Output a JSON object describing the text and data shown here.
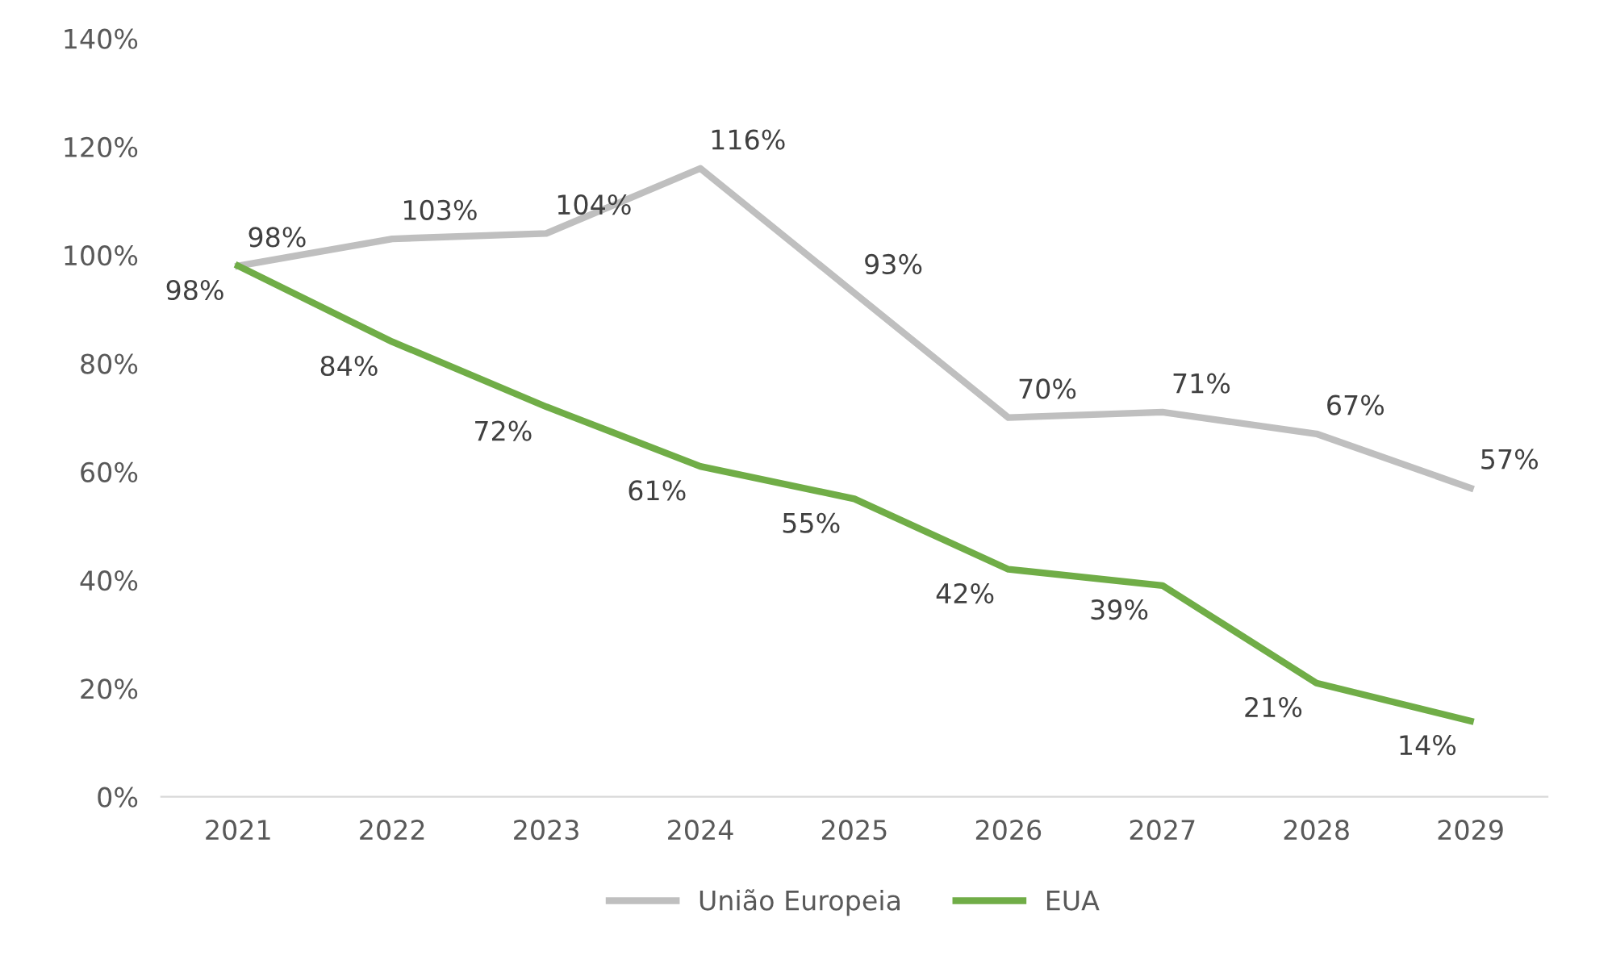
{
  "chart_data": {
    "type": "line",
    "categories": [
      "2021",
      "2022",
      "2023",
      "2024",
      "2025",
      "2026",
      "2027",
      "2028",
      "2029"
    ],
    "series": [
      {
        "name": "União Europeia",
        "color": "#bfbfbf",
        "values": [
          98,
          103,
          104,
          116,
          93,
          70,
          71,
          67,
          57
        ],
        "value_labels": [
          "98%",
          "103%",
          "104%",
          "116%",
          "93%",
          "70%",
          "71%",
          "67%",
          "57%"
        ]
      },
      {
        "name": "EUA",
        "color": "#70ad47",
        "values": [
          98,
          84,
          72,
          61,
          55,
          42,
          39,
          21,
          14
        ],
        "value_labels": [
          "98%",
          "84%",
          "72%",
          "61%",
          "55%",
          "42%",
          "39%",
          "21%",
          "14%"
        ]
      }
    ],
    "ylim": [
      0,
      140
    ],
    "yticks": [
      {
        "value": 0,
        "label": "0%"
      },
      {
        "value": 20,
        "label": "20%"
      },
      {
        "value": 40,
        "label": "40%"
      },
      {
        "value": 60,
        "label": "60%"
      },
      {
        "value": 80,
        "label": "80%"
      },
      {
        "value": 100,
        "label": "100%"
      },
      {
        "value": 120,
        "label": "120%"
      },
      {
        "value": 140,
        "label": "140%"
      }
    ],
    "grid": false,
    "legend": "bottom",
    "marker": "none",
    "line_style": "solid"
  }
}
